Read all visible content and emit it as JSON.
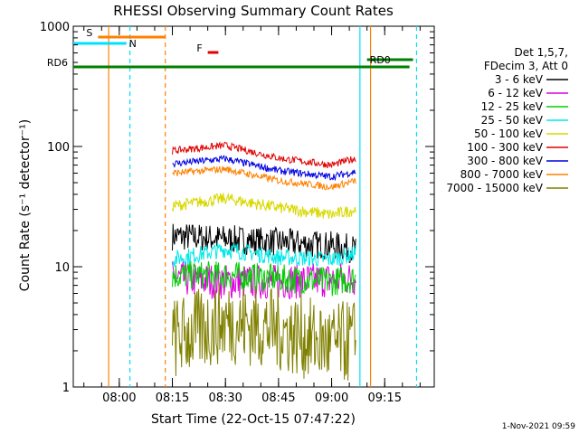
{
  "chart_data": {
    "type": "line",
    "title": "RHESSI Observing Summary Count Rates",
    "xlabel": "Start Time (22-Oct-15 07:47:22)",
    "ylabel": "Count Rate (s⁻¹ detector⁻¹)",
    "y_scale": "log",
    "ylim": [
      1,
      1000
    ],
    "xlim": [
      "07:47",
      "09:29"
    ],
    "x_ticks": [
      "08:00",
      "08:15",
      "08:30",
      "08:45",
      "09:00",
      "09:15"
    ],
    "y_ticks": [
      "1",
      "10",
      "100",
      "1000"
    ],
    "legend_header": [
      "Det 1,5,7,",
      "FDecim 3, Att 0"
    ],
    "legend_position": "right",
    "footer": "1-Nov-2021 09:59",
    "series": [
      {
        "name": "3 - 6 keV",
        "color": "#000000",
        "x": [
          "08:15",
          "08:30",
          "08:45",
          "09:00",
          "09:07"
        ],
        "values": [
          18,
          17,
          16,
          15,
          14
        ],
        "noise": 0.12
      },
      {
        "name": "6 - 12 keV",
        "color": "#e000e0",
        "x": [
          "08:15",
          "08:30",
          "08:45",
          "09:00",
          "09:07"
        ],
        "values": [
          8,
          7.5,
          7.5,
          7.8,
          8
        ],
        "noise": 0.15
      },
      {
        "name": "12 - 25 keV",
        "color": "#00d000",
        "x": [
          "08:15",
          "08:30",
          "08:45",
          "09:00",
          "09:07"
        ],
        "values": [
          8.5,
          8.5,
          8,
          7.5,
          8
        ],
        "noise": 0.12
      },
      {
        "name": "25 - 50 keV",
        "color": "#00e8e8",
        "x": [
          "08:15",
          "08:30",
          "08:45",
          "09:00",
          "09:07"
        ],
        "values": [
          11.5,
          14,
          12,
          11.5,
          13
        ],
        "noise": 0.07
      },
      {
        "name": "50 - 100 keV",
        "color": "#d8d800",
        "x": [
          "08:15",
          "08:30",
          "08:45",
          "09:00",
          "09:07"
        ],
        "values": [
          32,
          37,
          31,
          27,
          30
        ],
        "noise": 0.05
      },
      {
        "name": "100 - 300 keV",
        "color": "#e00000",
        "x": [
          "08:15",
          "08:30",
          "08:45",
          "09:00",
          "09:07"
        ],
        "values": [
          92,
          102,
          80,
          70,
          80
        ],
        "noise": 0.03
      },
      {
        "name": "300 - 800 keV",
        "color": "#0000e0",
        "x": [
          "08:15",
          "08:30",
          "08:45",
          "09:00",
          "09:07"
        ],
        "values": [
          72,
          79,
          63,
          56,
          62
        ],
        "noise": 0.03
      },
      {
        "name": "800 - 7000 keV",
        "color": "#ff8000",
        "x": [
          "08:15",
          "08:30",
          "08:45",
          "09:00",
          "09:07"
        ],
        "values": [
          60,
          65,
          52,
          46,
          52
        ],
        "noise": 0.03
      },
      {
        "name": "7000 - 15000 keV",
        "color": "#808000",
        "x": [
          "08:15",
          "08:30",
          "08:45",
          "09:00",
          "09:07"
        ],
        "values": [
          2.5,
          3.5,
          3,
          2.2,
          2.5
        ],
        "noise": 0.35
      }
    ],
    "attenuator_states": [
      {
        "label": "S",
        "start": "07:54",
        "end": "08:13",
        "color": "#ff8000"
      },
      {
        "label": "N",
        "start": "07:47",
        "end": "08:02",
        "color": "#00e0ff"
      },
      {
        "label": "F",
        "start": "08:25",
        "end": "08:28",
        "color": "#e00000"
      },
      {
        "label": "RD0",
        "start": "09:10",
        "end": "09:23",
        "color": "#008000"
      },
      {
        "label": "RD6",
        "start": "07:47",
        "end": "09:22",
        "color": "#008000"
      }
    ],
    "vertical_markers": [
      {
        "time": "07:57",
        "color": "#ff8000",
        "style": "solid"
      },
      {
        "time": "08:13",
        "color": "#ff8000",
        "style": "dashed"
      },
      {
        "time": "08:03",
        "color": "#00e0ff",
        "style": "dashed"
      },
      {
        "time": "09:08",
        "color": "#00e0ff",
        "style": "solid"
      },
      {
        "time": "09:24",
        "color": "#00e0ff",
        "style": "dashed"
      },
      {
        "time": "09:11",
        "color": "#ff8000",
        "style": "solid"
      }
    ]
  }
}
